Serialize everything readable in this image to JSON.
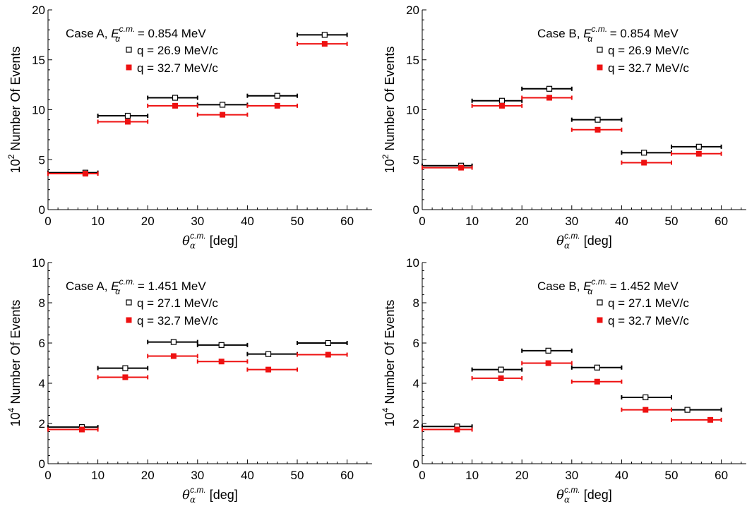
{
  "chart_data": [
    {
      "type": "scatter",
      "panel": "top-left",
      "xlabel_symbol": "θ",
      "xlabel_sub": "α",
      "xlabel_sup": "c.m.",
      "xlabel_unit": "[deg]",
      "ylabel_base": "10",
      "ylabel_exp": "2",
      "ylabel_text": "Number Of Events",
      "xlim": [
        0,
        65
      ],
      "ylim": [
        0,
        20
      ],
      "xticks": [
        0,
        10,
        20,
        30,
        40,
        50,
        60
      ],
      "yticks": [
        0,
        5,
        10,
        15,
        20
      ],
      "case_label": "Case A,",
      "energy_symbol": "E",
      "energy_sub": "α",
      "energy_sup": "c.m.",
      "energy_value": "= 0.854 MeV",
      "legend_placement": "top-left",
      "series": [
        {
          "name": "q = 26.9 MeV/c",
          "marker": "open-square",
          "color": "#000000",
          "points": [
            {
              "x": 7.5,
              "y": 3.7,
              "xmin": 0,
              "xmax": 10
            },
            {
              "x": 16,
              "y": 9.4,
              "xmin": 10,
              "xmax": 20
            },
            {
              "x": 25.5,
              "y": 11.2,
              "xmin": 20,
              "xmax": 30
            },
            {
              "x": 35,
              "y": 10.5,
              "xmin": 30,
              "xmax": 40
            },
            {
              "x": 46,
              "y": 11.4,
              "xmin": 40,
              "xmax": 50
            },
            {
              "x": 55.5,
              "y": 17.5,
              "xmin": 50,
              "xmax": 60
            }
          ]
        },
        {
          "name": "q = 32.7 MeV/c",
          "marker": "filled-square",
          "color": "#ee1111",
          "points": [
            {
              "x": 7.5,
              "y": 3.6,
              "xmin": 0,
              "xmax": 10
            },
            {
              "x": 16,
              "y": 8.8,
              "xmin": 10,
              "xmax": 20
            },
            {
              "x": 25.5,
              "y": 10.4,
              "xmin": 20,
              "xmax": 30
            },
            {
              "x": 35,
              "y": 9.5,
              "xmin": 30,
              "xmax": 40
            },
            {
              "x": 46,
              "y": 10.4,
              "xmin": 40,
              "xmax": 50
            },
            {
              "x": 55.5,
              "y": 16.6,
              "xmin": 50,
              "xmax": 60
            }
          ]
        }
      ]
    },
    {
      "type": "scatter",
      "panel": "top-right",
      "xlabel_symbol": "θ",
      "xlabel_sub": "α",
      "xlabel_sup": "c.m.",
      "xlabel_unit": "[deg]",
      "ylabel_base": "10",
      "ylabel_exp": "2",
      "ylabel_text": "Number Of Events",
      "xlim": [
        0,
        65
      ],
      "ylim": [
        0,
        20
      ],
      "xticks": [
        0,
        10,
        20,
        30,
        40,
        50,
        60
      ],
      "yticks": [
        0,
        5,
        10,
        15,
        20
      ],
      "case_label": "Case B,",
      "energy_symbol": "E",
      "energy_sub": "α",
      "energy_sup": "c.m.",
      "energy_value": "= 0.854 MeV",
      "legend_placement": "top-right",
      "series": [
        {
          "name": "q = 26.9 MeV/c",
          "marker": "open-square",
          "color": "#000000",
          "points": [
            {
              "x": 7.8,
              "y": 4.4,
              "xmin": 0,
              "xmax": 10
            },
            {
              "x": 16,
              "y": 10.9,
              "xmin": 10,
              "xmax": 20
            },
            {
              "x": 25.5,
              "y": 12.1,
              "xmin": 20,
              "xmax": 30
            },
            {
              "x": 35.2,
              "y": 9.0,
              "xmin": 30,
              "xmax": 40
            },
            {
              "x": 44.5,
              "y": 5.7,
              "xmin": 40,
              "xmax": 50
            },
            {
              "x": 55.5,
              "y": 6.3,
              "xmin": 50,
              "xmax": 60
            }
          ]
        },
        {
          "name": "q = 32.7 MeV/c",
          "marker": "filled-square",
          "color": "#ee1111",
          "points": [
            {
              "x": 7.8,
              "y": 4.2,
              "xmin": 0,
              "xmax": 10
            },
            {
              "x": 16,
              "y": 10.4,
              "xmin": 10,
              "xmax": 20
            },
            {
              "x": 25.5,
              "y": 11.2,
              "xmin": 20,
              "xmax": 30
            },
            {
              "x": 35.2,
              "y": 8.0,
              "xmin": 30,
              "xmax": 40
            },
            {
              "x": 44.5,
              "y": 4.7,
              "xmin": 40,
              "xmax": 50
            },
            {
              "x": 55.5,
              "y": 5.6,
              "xmin": 50,
              "xmax": 60
            }
          ]
        }
      ]
    },
    {
      "type": "scatter",
      "panel": "bottom-left",
      "xlabel_symbol": "θ",
      "xlabel_sub": "α",
      "xlabel_sup": "c.m.",
      "xlabel_unit": "[deg]",
      "ylabel_base": "10",
      "ylabel_exp": "4",
      "ylabel_text": "Number Of Events",
      "xlim": [
        0,
        65
      ],
      "ylim": [
        0,
        10
      ],
      "xticks": [
        0,
        10,
        20,
        30,
        40,
        50,
        60
      ],
      "yticks": [
        0,
        2,
        4,
        6,
        8,
        10
      ],
      "case_label": "Case A,",
      "energy_symbol": "E",
      "energy_sub": "α",
      "energy_sup": "c.m.",
      "energy_value": "= 1.451 MeV",
      "legend_placement": "top-left",
      "series": [
        {
          "name": "q = 27.1 MeV/c",
          "marker": "open-square",
          "color": "#000000",
          "points": [
            {
              "x": 6.8,
              "y": 1.82,
              "xmin": 0,
              "xmax": 10
            },
            {
              "x": 15.5,
              "y": 4.75,
              "xmin": 10,
              "xmax": 20
            },
            {
              "x": 25.2,
              "y": 6.05,
              "xmin": 20,
              "xmax": 30
            },
            {
              "x": 34.8,
              "y": 5.9,
              "xmin": 30,
              "xmax": 40
            },
            {
              "x": 44.2,
              "y": 5.45,
              "xmin": 40,
              "xmax": 50
            },
            {
              "x": 56.2,
              "y": 6.0,
              "xmin": 50,
              "xmax": 60
            }
          ]
        },
        {
          "name": "q = 32.7 MeV/c",
          "marker": "filled-square",
          "color": "#ee1111",
          "points": [
            {
              "x": 6.8,
              "y": 1.7,
              "xmin": 0,
              "xmax": 10
            },
            {
              "x": 15.5,
              "y": 4.3,
              "xmin": 10,
              "xmax": 20
            },
            {
              "x": 25.2,
              "y": 5.35,
              "xmin": 20,
              "xmax": 30
            },
            {
              "x": 34.8,
              "y": 5.08,
              "xmin": 30,
              "xmax": 40
            },
            {
              "x": 44.2,
              "y": 4.68,
              "xmin": 40,
              "xmax": 50
            },
            {
              "x": 56.2,
              "y": 5.42,
              "xmin": 50,
              "xmax": 60
            }
          ]
        }
      ]
    },
    {
      "type": "scatter",
      "panel": "bottom-right",
      "xlabel_symbol": "θ",
      "xlabel_sub": "α",
      "xlabel_sup": "c.m.",
      "xlabel_unit": "[deg]",
      "ylabel_base": "10",
      "ylabel_exp": "4",
      "ylabel_text": "Number Of Events",
      "xlim": [
        0,
        65
      ],
      "ylim": [
        0,
        10
      ],
      "xticks": [
        0,
        10,
        20,
        30,
        40,
        50,
        60
      ],
      "yticks": [
        0,
        2,
        4,
        6,
        8,
        10
      ],
      "case_label": "Case B,",
      "energy_symbol": "E",
      "energy_sub": "α",
      "energy_sup": "c.m.",
      "energy_value": "= 1.452 MeV",
      "legend_placement": "top-right",
      "series": [
        {
          "name": "q = 27.1 MeV/c",
          "marker": "open-square",
          "color": "#000000",
          "points": [
            {
              "x": 7,
              "y": 1.85,
              "xmin": 0,
              "xmax": 10
            },
            {
              "x": 15.8,
              "y": 4.68,
              "xmin": 10,
              "xmax": 20
            },
            {
              "x": 25.3,
              "y": 5.62,
              "xmin": 20,
              "xmax": 30
            },
            {
              "x": 35.1,
              "y": 4.78,
              "xmin": 30,
              "xmax": 40
            },
            {
              "x": 44.8,
              "y": 3.3,
              "xmin": 40,
              "xmax": 50
            },
            {
              "x": 53.2,
              "y": 2.68,
              "xmin": 50,
              "xmax": 60
            }
          ]
        },
        {
          "name": "q = 32.7 MeV/c",
          "marker": "filled-square",
          "color": "#ee1111",
          "points": [
            {
              "x": 7,
              "y": 1.7,
              "xmin": 0,
              "xmax": 10
            },
            {
              "x": 15.8,
              "y": 4.25,
              "xmin": 10,
              "xmax": 20
            },
            {
              "x": 25.3,
              "y": 5.0,
              "xmin": 20,
              "xmax": 30
            },
            {
              "x": 35.1,
              "y": 4.08,
              "xmin": 30,
              "xmax": 40
            },
            {
              "x": 44.8,
              "y": 2.68,
              "xmin": 40,
              "xmax": 50
            },
            {
              "x": 57.8,
              "y": 2.18,
              "xmin": 50,
              "xmax": 60
            }
          ]
        }
      ]
    }
  ]
}
